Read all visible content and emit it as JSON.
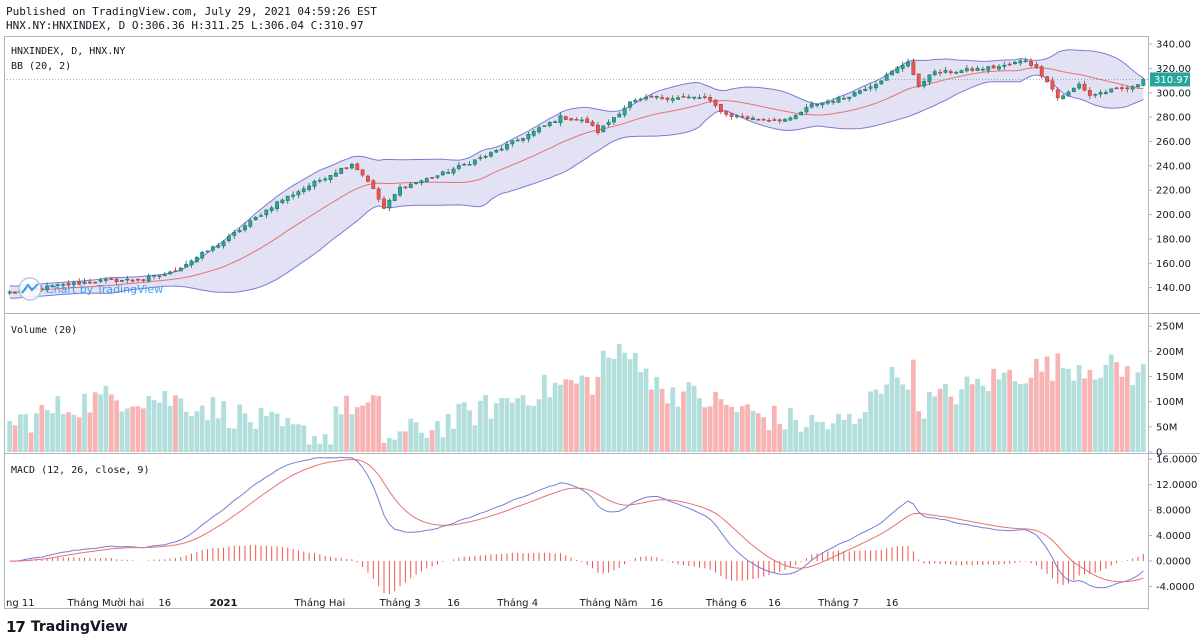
{
  "header": {
    "published": "Published on TradingView.com, July 29, 2021 04:59:26 EST",
    "ohlc": "HNX.NY:HNXINDEX, D O:306.36 H:311.25 L:306.04 C:310.97"
  },
  "footer": {
    "brand": "TradingView"
  },
  "watermark": {
    "text": "Chart by TradingView"
  },
  "colors": {
    "up": "#26a69a",
    "down": "#ef5350",
    "up_vol": "#b2dfdb",
    "down_vol": "#f8b4b4",
    "band_fill": "#d6d6f0",
    "band_line": "#7b7bd8",
    "basis": "#e57373",
    "macd": "#7b7bd8",
    "signal": "#e57373",
    "last_bg": "#26a69a"
  },
  "chart_data": [
    {
      "type": "candlestick",
      "title": "HNXINDEX, D, HNX.NY",
      "indicator_label": "BB (20, 2)",
      "ylim": [
        120,
        345
      ],
      "yticks": [
        140,
        160,
        180,
        200,
        220,
        240,
        260,
        280,
        300,
        320,
        340
      ],
      "ytick_labels": [
        "140.00",
        "160.00",
        "180.00",
        "200.00",
        "220.00",
        "240.00",
        "260.00",
        "280.00",
        "300.00",
        "320.00",
        "340.00"
      ],
      "last_price": 310.97,
      "last_price_label": "310.97",
      "close_keypoints": [
        [
          0,
          136
        ],
        [
          15,
          145
        ],
        [
          25,
          147
        ],
        [
          30,
          152
        ],
        [
          40,
          178
        ],
        [
          50,
          210
        ],
        [
          60,
          233
        ],
        [
          64,
          242
        ],
        [
          67,
          228
        ],
        [
          70,
          205
        ],
        [
          73,
          222
        ],
        [
          80,
          232
        ],
        [
          90,
          250
        ],
        [
          98,
          268
        ],
        [
          103,
          280
        ],
        [
          108,
          276
        ],
        [
          110,
          268
        ],
        [
          116,
          292
        ],
        [
          120,
          296
        ],
        [
          130,
          296
        ],
        [
          134,
          282
        ],
        [
          140,
          278
        ],
        [
          146,
          278
        ],
        [
          150,
          290
        ],
        [
          156,
          296
        ],
        [
          162,
          308
        ],
        [
          166,
          320
        ],
        [
          168,
          326
        ],
        [
          170,
          304
        ],
        [
          172,
          316
        ],
        [
          178,
          318
        ],
        [
          186,
          322
        ],
        [
          190,
          327
        ],
        [
          192,
          320
        ],
        [
          194,
          310
        ],
        [
          196,
          296
        ],
        [
          198,
          300
        ],
        [
          200,
          307
        ],
        [
          202,
          298
        ],
        [
          206,
          302
        ],
        [
          210,
          304
        ],
        [
          212,
          311
        ]
      ],
      "n_candles": 213,
      "bb_period": 20,
      "bb_mult": 2
    },
    {
      "type": "bar",
      "title": "Volume (20)",
      "ylim": [
        0,
        270
      ],
      "yticks": [
        0,
        50,
        100,
        150,
        200,
        250
      ],
      "ytick_labels": [
        "0",
        "50M",
        "100M",
        "150M",
        "200M",
        "250M"
      ],
      "seed": 7
    },
    {
      "type": "line",
      "title": "MACD (12, 26, close, 9)",
      "ylim": [
        -5.5,
        16.5
      ],
      "yticks": [
        -4,
        0,
        4,
        8,
        12,
        16
      ],
      "ytick_labels": [
        "-4.0000",
        "0.0000",
        "4.0000",
        "8.0000",
        "12.0000",
        "16.0000"
      ],
      "series": [
        {
          "name": "MACD"
        },
        {
          "name": "Signal"
        },
        {
          "name": "Histogram"
        }
      ]
    }
  ],
  "x_axis": {
    "labels": [
      {
        "text": "ng 11",
        "i": 0
      },
      {
        "text": "Tháng Mười hai",
        "i": 18
      },
      {
        "text": "16",
        "i": 29
      },
      {
        "text": "2021",
        "i": 40
      },
      {
        "text": "Tháng Hai",
        "i": 58
      },
      {
        "text": "Tháng 3",
        "i": 73
      },
      {
        "text": "16",
        "i": 83
      },
      {
        "text": "Tháng 4",
        "i": 95
      },
      {
        "text": "Tháng Năm",
        "i": 112
      },
      {
        "text": "16",
        "i": 121
      },
      {
        "text": "Tháng 6",
        "i": 134
      },
      {
        "text": "16",
        "i": 143
      },
      {
        "text": "Tháng 7",
        "i": 155
      },
      {
        "text": "16",
        "i": 165
      }
    ]
  }
}
